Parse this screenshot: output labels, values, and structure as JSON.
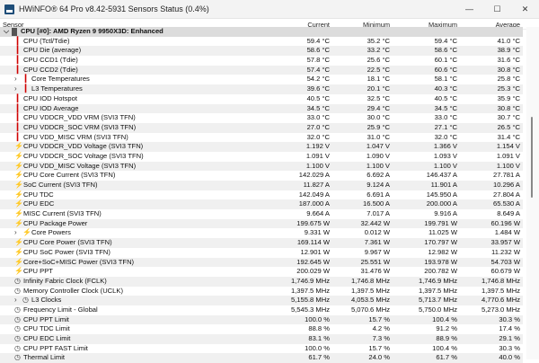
{
  "window": {
    "title": "HWiNFO® 64 Pro v8.42-5931 Sensors Status (0.4%)",
    "minimize": "—",
    "maximize": "☐",
    "close": "✕"
  },
  "columns": {
    "sensor": "Sensor",
    "current": "Current",
    "minimum": "Minimum",
    "maximum": "Maximum",
    "average": "Average"
  },
  "group": {
    "label": "CPU [#0]: AMD Ryzen 9 9950X3D: Enhanced"
  },
  "rows": [
    {
      "name": "CPU (Tctl/Tdie)",
      "icon": "thermometer",
      "cur": "59.4 °C",
      "min": "35.2 °C",
      "max": "59.4 °C",
      "avg": "41.0 °C"
    },
    {
      "name": "CPU Die (average)",
      "icon": "thermometer",
      "cur": "58.6 °C",
      "min": "33.2 °C",
      "max": "58.6 °C",
      "avg": "38.9 °C"
    },
    {
      "name": "CPU CCD1 (Tdie)",
      "icon": "thermometer",
      "cur": "57.8 °C",
      "min": "25.6 °C",
      "max": "60.1 °C",
      "avg": "31.6 °C"
    },
    {
      "name": "CPU CCD2 (Tdie)",
      "icon": "thermometer",
      "cur": "57.4 °C",
      "min": "22.5 °C",
      "max": "60.6 °C",
      "avg": "30.8 °C"
    },
    {
      "name": "Core Temperatures",
      "icon": "thermometer",
      "expand": true,
      "cur": "54.2 °C",
      "min": "18.1 °C",
      "max": "58.1 °C",
      "avg": "25.8 °C"
    },
    {
      "name": "L3 Temperatures",
      "icon": "thermometer",
      "expand": true,
      "cur": "39.6 °C",
      "min": "20.1 °C",
      "max": "40.3 °C",
      "avg": "25.3 °C"
    },
    {
      "name": "CPU IOD Hotspot",
      "icon": "thermometer",
      "cur": "40.5 °C",
      "min": "32.5 °C",
      "max": "40.5 °C",
      "avg": "35.9 °C"
    },
    {
      "name": "CPU IOD Average",
      "icon": "thermometer",
      "cur": "34.5 °C",
      "min": "29.4 °C",
      "max": "34.5 °C",
      "avg": "30.8 °C"
    },
    {
      "name": "CPU VDDCR_VDD VRM (SVI3 TFN)",
      "icon": "thermometer",
      "cur": "33.0 °C",
      "min": "30.0 °C",
      "max": "33.0 °C",
      "avg": "30.7 °C"
    },
    {
      "name": "CPU VDDCR_SOC VRM (SVI3 TFN)",
      "icon": "thermometer",
      "cur": "27.0 °C",
      "min": "25.9 °C",
      "max": "27.1 °C",
      "avg": "26.5 °C"
    },
    {
      "name": "CPU VDD_MISC VRM (SVI3 TFN)",
      "icon": "thermometer",
      "cur": "32.0 °C",
      "min": "31.0 °C",
      "max": "32.0 °C",
      "avg": "31.4 °C"
    },
    {
      "name": "CPU VDDCR_VDD Voltage (SVI3 TFN)",
      "icon": "bolt",
      "cur": "1.192 V",
      "min": "1.047 V",
      "max": "1.366 V",
      "avg": "1.154 V"
    },
    {
      "name": "CPU VDDCR_SOC Voltage (SVI3 TFN)",
      "icon": "bolt",
      "cur": "1.091 V",
      "min": "1.090 V",
      "max": "1.093 V",
      "avg": "1.091 V"
    },
    {
      "name": "CPU VDD_MISC Voltage (SVI3 TFN)",
      "icon": "bolt",
      "cur": "1.100 V",
      "min": "1.100 V",
      "max": "1.100 V",
      "avg": "1.100 V"
    },
    {
      "name": "CPU Core Current (SVI3 TFN)",
      "icon": "bolt",
      "cur": "142.029 A",
      "min": "6.692 A",
      "max": "146.437 A",
      "avg": "27.781 A"
    },
    {
      "name": "SoC Current (SVI3 TFN)",
      "icon": "bolt",
      "cur": "11.827 A",
      "min": "9.124 A",
      "max": "11.901 A",
      "avg": "10.296 A"
    },
    {
      "name": "CPU TDC",
      "icon": "bolt",
      "cur": "142.049 A",
      "min": "6.691 A",
      "max": "145.950 A",
      "avg": "27.804 A"
    },
    {
      "name": "CPU EDC",
      "icon": "bolt",
      "cur": "187.000 A",
      "min": "16.500 A",
      "max": "200.000 A",
      "avg": "65.530 A"
    },
    {
      "name": "MISC Current (SVI3 TFN)",
      "icon": "bolt",
      "cur": "9.664 A",
      "min": "7.017 A",
      "max": "9.916 A",
      "avg": "8.649 A"
    },
    {
      "name": "CPU Package Power",
      "icon": "bolt",
      "cur": "199.675 W",
      "min": "32.442 W",
      "max": "199.791 W",
      "avg": "60.196 W"
    },
    {
      "name": "Core Powers",
      "icon": "bolt",
      "expand": true,
      "cur": "9.331 W",
      "min": "0.012 W",
      "max": "11.025 W",
      "avg": "1.484 W"
    },
    {
      "name": "CPU Core Power (SVI3 TFN)",
      "icon": "bolt",
      "cur": "169.114 W",
      "min": "7.361 W",
      "max": "170.797 W",
      "avg": "33.957 W"
    },
    {
      "name": "CPU SoC Power (SVI3 TFN)",
      "icon": "bolt",
      "cur": "12.901 W",
      "min": "9.967 W",
      "max": "12.982 W",
      "avg": "11.232 W"
    },
    {
      "name": "Core+SoC+MISC Power (SVI3 TFN)",
      "icon": "bolt",
      "cur": "192.645 W",
      "min": "25.551 W",
      "max": "193.978 W",
      "avg": "54.703 W"
    },
    {
      "name": "CPU PPT",
      "icon": "bolt",
      "cur": "200.029 W",
      "min": "31.476 W",
      "max": "200.782 W",
      "avg": "60.679 W"
    },
    {
      "name": "Infinity Fabric Clock (FCLK)",
      "icon": "clock",
      "cur": "1,746.9 MHz",
      "min": "1,746.8 MHz",
      "max": "1,746.9 MHz",
      "avg": "1,746.8 MHz"
    },
    {
      "name": "Memory Controller Clock (UCLK)",
      "icon": "clock",
      "cur": "1,397.5 MHz",
      "min": "1,397.5 MHz",
      "max": "1,397.5 MHz",
      "avg": "1,397.5 MHz"
    },
    {
      "name": "L3 Clocks",
      "icon": "clock",
      "expand": true,
      "cur": "5,155.8 MHz",
      "min": "4,053.5 MHz",
      "max": "5,713.7 MHz",
      "avg": "4,770.6 MHz"
    },
    {
      "name": "Frequency Limit - Global",
      "icon": "clock",
      "cur": "5,545.3 MHz",
      "min": "5,070.6 MHz",
      "max": "5,750.0 MHz",
      "avg": "5,273.0 MHz"
    },
    {
      "name": "CPU PPT Limit",
      "icon": "clock",
      "cur": "100.0 %",
      "min": "15.7 %",
      "max": "100.4 %",
      "avg": "30.3 %"
    },
    {
      "name": "CPU TDC Limit",
      "icon": "clock",
      "cur": "88.8 %",
      "min": "4.2 %",
      "max": "91.2 %",
      "avg": "17.4 %"
    },
    {
      "name": "CPU EDC Limit",
      "icon": "clock",
      "cur": "83.1 %",
      "min": "7.3 %",
      "max": "88.9 %",
      "avg": "29.1 %"
    },
    {
      "name": "CPU PPT FAST Limit",
      "icon": "clock",
      "cur": "100.0 %",
      "min": "15.7 %",
      "max": "100.4 %",
      "avg": "30.3 %"
    },
    {
      "name": "Thermal Limit",
      "icon": "clock",
      "cur": "61.7 %",
      "min": "24.0 %",
      "max": "61.7 %",
      "avg": "40.0 %"
    }
  ]
}
